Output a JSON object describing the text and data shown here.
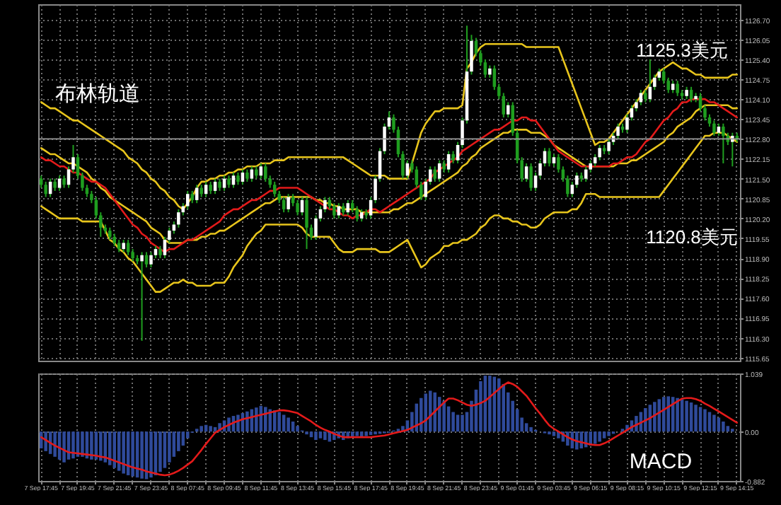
{
  "chart_data": [
    {
      "type": "candlestick",
      "categories": [
        null,
        null,
        null,
        null,
        null,
        null,
        null,
        null,
        null,
        null,
        null,
        null,
        null,
        null,
        null,
        null,
        null,
        null,
        null,
        null,
        null,
        null,
        null,
        null,
        null,
        null,
        null,
        null,
        null,
        null,
        null,
        null,
        null,
        null,
        null,
        null,
        null,
        null,
        null,
        null,
        null,
        null,
        null,
        null,
        null,
        null,
        null,
        null,
        null,
        null,
        null,
        null,
        null,
        null,
        null,
        null,
        null,
        null,
        null,
        null,
        null,
        null,
        null,
        null,
        null,
        null,
        null,
        null,
        null,
        null,
        null,
        null,
        null,
        null,
        null,
        null,
        null,
        null,
        null,
        null,
        null,
        null,
        null,
        null,
        null,
        null,
        null,
        null,
        null,
        null,
        null,
        null,
        null,
        null,
        null,
        null,
        null,
        null,
        null,
        null,
        null,
        null,
        null,
        null,
        null,
        null,
        null,
        null,
        null,
        null,
        null,
        null,
        null,
        null,
        null,
        null,
        null,
        null,
        null,
        null,
        null,
        null,
        null,
        null,
        null,
        null,
        null,
        null,
        null,
        null,
        null,
        null,
        null,
        null,
        null,
        null,
        null,
        null,
        null,
        null,
        null,
        null,
        null,
        null,
        null,
        null,
        null,
        null,
        null,
        null,
        null,
        null,
        null
      ],
      "ohlc": [
        [
          1121.5,
          1121.6,
          1121.2,
          1121.3
        ],
        [
          1121.3,
          1121.4,
          1120.9,
          1121.0
        ],
        [
          1121.0,
          1121.5,
          1120.9,
          1121.4
        ],
        [
          1121.4,
          1121.5,
          1121.1,
          1121.2
        ],
        [
          1121.2,
          1121.6,
          1121.1,
          1121.5
        ],
        [
          1121.5,
          1121.6,
          1121.2,
          1121.3
        ],
        [
          1121.3,
          1121.9,
          1121.2,
          1121.8
        ],
        [
          1121.8,
          1122.6,
          1121.7,
          1122.2
        ],
        [
          1122.2,
          1122.3,
          1121.5,
          1121.6
        ],
        [
          1121.6,
          1121.7,
          1121.1,
          1121.2
        ],
        [
          1121.2,
          1121.3,
          1120.9,
          1121.0
        ],
        [
          1121.0,
          1121.1,
          1120.7,
          1120.8
        ],
        [
          1120.8,
          1120.9,
          1120.2,
          1120.3
        ],
        [
          1120.3,
          1120.4,
          1119.6,
          1119.9
        ],
        [
          1119.9,
          1120.0,
          1119.7,
          1119.8
        ],
        [
          1119.8,
          1119.9,
          1119.5,
          1119.6
        ],
        [
          1119.6,
          1119.7,
          1119.3,
          1119.4
        ],
        [
          1119.4,
          1119.5,
          1119.1,
          1119.2
        ],
        [
          1119.2,
          1119.5,
          1119.1,
          1119.4
        ],
        [
          1119.4,
          1119.5,
          1119.0,
          1119.1
        ],
        [
          1119.1,
          1119.2,
          1118.8,
          1118.9
        ],
        [
          1118.9,
          1119.0,
          1118.7,
          1118.8
        ],
        [
          1118.8,
          1119.1,
          1116.2,
          1119.0
        ],
        [
          1119.0,
          1119.1,
          1118.6,
          1118.7
        ],
        [
          1118.7,
          1119.1,
          1118.6,
          1119.0
        ],
        [
          1119.0,
          1119.3,
          1118.9,
          1119.2
        ],
        [
          1119.2,
          1119.3,
          1118.9,
          1119.0
        ],
        [
          1119.0,
          1119.6,
          1118.9,
          1119.5
        ],
        [
          1119.5,
          1119.9,
          1119.4,
          1119.8
        ],
        [
          1119.8,
          1120.1,
          1119.7,
          1120.0
        ],
        [
          1120.0,
          1120.5,
          1119.9,
          1120.4
        ],
        [
          1120.4,
          1120.7,
          1120.3,
          1120.6
        ],
        [
          1120.6,
          1121.1,
          1120.5,
          1121.0
        ],
        [
          1121.0,
          1121.1,
          1120.7,
          1120.8
        ],
        [
          1120.8,
          1121.3,
          1120.7,
          1121.2
        ],
        [
          1121.2,
          1121.3,
          1120.9,
          1121.0
        ],
        [
          1121.0,
          1121.4,
          1120.9,
          1121.3
        ],
        [
          1121.3,
          1121.4,
          1121.0,
          1121.1
        ],
        [
          1121.1,
          1121.5,
          1121.0,
          1121.4
        ],
        [
          1121.4,
          1121.5,
          1121.1,
          1121.2
        ],
        [
          1121.2,
          1121.6,
          1121.1,
          1121.5
        ],
        [
          1121.5,
          1121.6,
          1121.2,
          1121.3
        ],
        [
          1121.3,
          1121.7,
          1121.2,
          1121.6
        ],
        [
          1121.6,
          1121.7,
          1121.3,
          1121.4
        ],
        [
          1121.4,
          1121.8,
          1121.3,
          1121.7
        ],
        [
          1121.7,
          1121.8,
          1121.4,
          1121.5
        ],
        [
          1121.5,
          1121.9,
          1121.4,
          1121.8
        ],
        [
          1121.8,
          1121.9,
          1121.5,
          1121.6
        ],
        [
          1121.6,
          1122.0,
          1121.5,
          1121.9
        ],
        [
          1121.9,
          1122.0,
          1121.4,
          1121.5
        ],
        [
          1121.5,
          1121.6,
          1121.2,
          1121.3
        ],
        [
          1121.3,
          1121.4,
          1120.9,
          1121.0
        ],
        [
          1121.0,
          1121.1,
          1120.7,
          1120.8
        ],
        [
          1120.8,
          1120.9,
          1120.4,
          1120.5
        ],
        [
          1120.5,
          1121.0,
          1120.4,
          1120.9
        ],
        [
          1120.9,
          1121.0,
          1120.6,
          1120.7
        ],
        [
          1120.7,
          1120.8,
          1120.3,
          1120.4
        ],
        [
          1120.4,
          1120.9,
          1120.3,
          1120.8
        ],
        [
          1120.8,
          1120.9,
          1119.2,
          1119.9
        ],
        [
          1119.9,
          1120.0,
          1119.5,
          1119.6
        ],
        [
          1119.6,
          1120.3,
          1119.5,
          1120.2
        ],
        [
          1120.2,
          1120.6,
          1120.1,
          1120.5
        ],
        [
          1120.5,
          1120.9,
          1120.4,
          1120.8
        ],
        [
          1120.8,
          1120.9,
          1120.5,
          1120.6
        ],
        [
          1120.6,
          1120.7,
          1120.2,
          1120.3
        ],
        [
          1120.3,
          1120.7,
          1120.2,
          1120.6
        ],
        [
          1120.6,
          1120.7,
          1120.3,
          1120.4
        ],
        [
          1120.4,
          1120.8,
          1120.3,
          1120.7
        ],
        [
          1120.7,
          1120.8,
          1120.4,
          1120.5
        ],
        [
          1120.5,
          1120.6,
          1120.1,
          1120.2
        ],
        [
          1120.2,
          1120.5,
          1120.1,
          1120.4
        ],
        [
          1120.4,
          1120.5,
          1120.2,
          1120.3
        ],
        [
          1120.3,
          1120.9,
          1120.2,
          1120.8
        ],
        [
          1120.8,
          1121.6,
          1120.7,
          1121.5
        ],
        [
          1121.5,
          1122.5,
          1121.4,
          1122.4
        ],
        [
          1122.4,
          1123.3,
          1122.3,
          1123.2
        ],
        [
          1123.2,
          1123.7,
          1123.1,
          1123.5
        ],
        [
          1123.5,
          1123.6,
          1123.0,
          1123.1
        ],
        [
          1123.1,
          1123.2,
          1122.2,
          1122.3
        ],
        [
          1122.3,
          1122.4,
          1121.5,
          1121.6
        ],
        [
          1121.6,
          1122.1,
          1121.5,
          1122.0
        ],
        [
          1122.0,
          1122.1,
          1121.7,
          1121.8
        ],
        [
          1121.8,
          1121.9,
          1121.2,
          1121.3
        ],
        [
          1121.3,
          1121.4,
          1120.8,
          1120.9
        ],
        [
          1120.9,
          1121.5,
          1120.8,
          1121.4
        ],
        [
          1121.4,
          1121.9,
          1121.3,
          1121.8
        ],
        [
          1121.8,
          1121.9,
          1121.4,
          1121.5
        ],
        [
          1121.5,
          1122.1,
          1121.4,
          1122.0
        ],
        [
          1122.0,
          1122.1,
          1121.7,
          1121.8
        ],
        [
          1121.8,
          1122.4,
          1121.7,
          1122.3
        ],
        [
          1122.3,
          1122.4,
          1122.0,
          1122.1
        ],
        [
          1122.1,
          1122.7,
          1122.0,
          1122.6
        ],
        [
          1122.6,
          1123.5,
          1122.5,
          1123.4
        ],
        [
          1123.4,
          1126.5,
          1123.3,
          1125.0
        ],
        [
          1125.0,
          1126.2,
          1124.9,
          1126.0
        ],
        [
          1126.0,
          1126.1,
          1125.5,
          1125.6
        ],
        [
          1125.6,
          1125.7,
          1125.2,
          1125.3
        ],
        [
          1125.3,
          1125.4,
          1124.8,
          1124.9
        ],
        [
          1124.9,
          1125.2,
          1124.8,
          1125.1
        ],
        [
          1125.1,
          1125.2,
          1124.4,
          1124.5
        ],
        [
          1124.5,
          1124.6,
          1124.1,
          1124.2
        ],
        [
          1124.2,
          1124.3,
          1123.5,
          1123.6
        ],
        [
          1123.6,
          1124.0,
          1123.5,
          1123.9
        ],
        [
          1123.9,
          1124.0,
          1122.9,
          1123.0
        ],
        [
          1123.0,
          1123.1,
          1122.0,
          1122.1
        ],
        [
          1122.1,
          1122.2,
          1121.4,
          1121.5
        ],
        [
          1121.5,
          1122.0,
          1121.4,
          1121.9
        ],
        [
          1121.9,
          1122.0,
          1121.1,
          1121.2
        ],
        [
          1121.2,
          1121.7,
          1121.1,
          1121.6
        ],
        [
          1121.6,
          1122.1,
          1121.5,
          1122.0
        ],
        [
          1122.0,
          1122.5,
          1121.9,
          1122.4
        ],
        [
          1122.4,
          1122.5,
          1121.9,
          1122.0
        ],
        [
          1122.0,
          1122.3,
          1121.9,
          1122.2
        ],
        [
          1122.2,
          1122.3,
          1121.7,
          1121.8
        ],
        [
          1121.8,
          1121.9,
          1121.4,
          1121.5
        ],
        [
          1121.5,
          1121.6,
          1120.9,
          1121.0
        ],
        [
          1121.0,
          1121.4,
          1120.9,
          1121.3
        ],
        [
          1121.3,
          1121.7,
          1121.2,
          1121.6
        ],
        [
          1121.6,
          1121.7,
          1121.4,
          1121.5
        ],
        [
          1121.5,
          1121.9,
          1121.4,
          1121.8
        ],
        [
          1121.8,
          1122.1,
          1121.7,
          1122.0
        ],
        [
          1122.0,
          1122.3,
          1121.9,
          1122.2
        ],
        [
          1122.2,
          1122.6,
          1122.1,
          1122.5
        ],
        [
          1122.5,
          1122.6,
          1122.3,
          1122.4
        ],
        [
          1122.4,
          1122.8,
          1122.3,
          1122.7
        ],
        [
          1122.7,
          1123.0,
          1122.6,
          1122.9
        ],
        [
          1122.9,
          1123.3,
          1122.8,
          1123.2
        ],
        [
          1123.2,
          1123.3,
          1123.0,
          1123.1
        ],
        [
          1123.1,
          1123.6,
          1123.0,
          1123.5
        ],
        [
          1123.5,
          1123.9,
          1123.4,
          1123.8
        ],
        [
          1123.8,
          1124.1,
          1123.7,
          1124.0
        ],
        [
          1124.0,
          1124.4,
          1123.9,
          1124.3
        ],
        [
          1124.3,
          1124.4,
          1124.0,
          1124.1
        ],
        [
          1124.1,
          1125.4,
          1124.0,
          1124.5
        ],
        [
          1124.5,
          1124.9,
          1124.4,
          1124.8
        ],
        [
          1124.8,
          1125.1,
          1124.7,
          1125.0
        ],
        [
          1125.0,
          1125.1,
          1124.6,
          1124.7
        ],
        [
          1124.7,
          1124.8,
          1124.3,
          1124.4
        ],
        [
          1124.4,
          1124.7,
          1124.3,
          1124.6
        ],
        [
          1124.6,
          1124.7,
          1124.2,
          1124.3
        ],
        [
          1124.3,
          1124.4,
          1124.1,
          1124.2
        ],
        [
          1124.2,
          1124.5,
          1124.1,
          1124.4
        ],
        [
          1124.4,
          1124.5,
          1124.0,
          1124.1
        ],
        [
          1124.1,
          1124.3,
          1124.0,
          1124.2
        ],
        [
          1124.2,
          1124.3,
          1123.7,
          1123.8
        ],
        [
          1123.8,
          1123.9,
          1123.4,
          1123.5
        ],
        [
          1123.5,
          1123.6,
          1123.2,
          1123.3
        ],
        [
          1123.3,
          1123.4,
          1122.9,
          1123.0
        ],
        [
          1123.0,
          1123.3,
          1122.9,
          1123.2
        ],
        [
          1123.2,
          1123.3,
          1122.0,
          1122.9
        ],
        [
          1122.9,
          1123.0,
          1122.6,
          1122.7
        ],
        [
          1122.7,
          1123.0,
          1121.9,
          1122.9
        ],
        [
          1122.9,
          1123.0,
          1122.7,
          1122.8
        ]
      ],
      "series": [
        {
          "type": "line",
          "color": "#e8c51c",
          "values": [
            1124.0,
            1123.9,
            1123.8,
            1123.8,
            1123.7,
            1123.6,
            1123.5,
            1123.4,
            1123.4,
            1123.3,
            1123.2,
            1123.1,
            1123.0,
            1122.9,
            1122.8,
            1122.7,
            1122.6,
            1122.5,
            1122.4,
            1122.2,
            1122.1,
            1122.0,
            1121.8,
            1121.7,
            1121.5,
            1121.4,
            1121.2,
            1121.1,
            1120.9,
            1120.8,
            1120.6,
            1120.5,
            1120.7,
            1120.9,
            1121.2,
            1121.4,
            1121.4,
            1121.5,
            1121.5,
            1121.6,
            1121.6,
            1121.7,
            1121.7,
            1121.8,
            1121.8,
            1121.9,
            1121.9,
            1121.9,
            1122.0,
            1122.0,
            1122.0,
            1122.1,
            1122.1,
            1122.1,
            1122.2,
            1122.2,
            1122.2,
            1122.2,
            1122.2,
            1122.2,
            1122.2,
            1122.2,
            1122.2,
            1122.2,
            1122.2,
            1122.2,
            1122.2,
            1122.1,
            1122.0,
            1121.9,
            1121.8,
            1121.7,
            1121.6,
            1121.6,
            1121.6,
            1121.6,
            1121.5,
            1121.5,
            1121.5,
            1121.5,
            1121.5,
            1122.0,
            1122.5,
            1123.0,
            1123.3,
            1123.5,
            1123.7,
            1123.7,
            1123.8,
            1123.8,
            1123.8,
            1123.8,
            1123.9,
            1125.1,
            1125.3,
            1125.6,
            1125.8,
            1125.9,
            1125.9,
            1125.9,
            1125.9,
            1125.9,
            1125.9,
            1125.9,
            1125.9,
            1125.9,
            1125.8,
            1125.8,
            1125.8,
            1125.8,
            1125.8,
            1125.8,
            1125.8,
            1125.8,
            1125.4,
            1125.0,
            1124.6,
            1124.2,
            1123.8,
            1123.4,
            1123.0,
            1122.6,
            1122.7,
            1122.7,
            1122.8,
            1123.0,
            1123.2,
            1123.4,
            1123.6,
            1123.8,
            1124.0,
            1124.2,
            1124.4,
            1124.6,
            1124.8,
            1125.0,
            1125.1,
            1125.2,
            1125.3,
            1125.2,
            1125.1,
            1125.1,
            1125.0,
            1124.9,
            1124.9,
            1124.8,
            1124.8,
            1124.8,
            1124.8,
            1124.8,
            1124.8,
            1124.9,
            1124.9
          ]
        },
        {
          "type": "line",
          "color": "#e8c51c",
          "values": [
            1122.5,
            1122.4,
            1122.3,
            1122.3,
            1122.2,
            1122.1,
            1122.0,
            1122.0,
            1121.9,
            1121.8,
            1121.7,
            1121.5,
            1121.4,
            1121.2,
            1121.1,
            1120.9,
            1120.8,
            1120.7,
            1120.6,
            1120.5,
            1120.4,
            1120.3,
            1120.2,
            1120.1,
            1119.9,
            1119.8,
            1119.7,
            1119.5,
            1119.4,
            1119.4,
            1119.4,
            1119.4,
            1119.5,
            1119.5,
            1119.5,
            1119.6,
            1119.6,
            1119.7,
            1119.7,
            1119.8,
            1119.8,
            1119.9,
            1120.0,
            1120.1,
            1120.2,
            1120.3,
            1120.4,
            1120.5,
            1120.6,
            1120.7,
            1120.7,
            1120.8,
            1120.9,
            1120.9,
            1120.9,
            1120.9,
            1120.9,
            1120.9,
            1120.9,
            1120.9,
            1120.8,
            1120.8,
            1120.7,
            1120.7,
            1120.6,
            1120.6,
            1120.5,
            1120.5,
            1120.5,
            1120.5,
            1120.4,
            1120.4,
            1120.4,
            1120.4,
            1120.4,
            1120.4,
            1120.4,
            1120.5,
            1120.5,
            1120.6,
            1120.7,
            1120.7,
            1120.8,
            1120.9,
            1121.0,
            1121.1,
            1121.2,
            1121.3,
            1121.4,
            1121.5,
            1121.6,
            1121.7,
            1121.9,
            1122.0,
            1122.2,
            1122.3,
            1122.5,
            1122.6,
            1122.7,
            1122.8,
            1122.9,
            1123.0,
            1123.0,
            1123.1,
            1123.1,
            1123.1,
            1123.1,
            1123.0,
            1123.0,
            1123.0,
            1122.9,
            1122.8,
            1122.6,
            1122.5,
            1122.4,
            1122.3,
            1122.2,
            1122.1,
            1122.0,
            1121.9,
            1121.9,
            1121.9,
            1121.9,
            1121.9,
            1121.9,
            1121.9,
            1122.0,
            1122.0,
            1122.0,
            1122.1,
            1122.1,
            1122.2,
            1122.3,
            1122.4,
            1122.5,
            1122.6,
            1122.7,
            1122.9,
            1123.0,
            1123.2,
            1123.3,
            1123.4,
            1123.5,
            1123.7,
            1123.8,
            1123.9,
            1123.9,
            1123.9,
            1123.9,
            1123.9,
            1123.9,
            1123.8,
            1123.8
          ]
        },
        {
          "type": "line",
          "color": "#e8c51c",
          "values": [
            1120.6,
            1120.5,
            1120.4,
            1120.3,
            1120.2,
            1120.2,
            1120.2,
            1120.2,
            1120.2,
            1120.1,
            1120.1,
            1120.1,
            1120.1,
            1120.1,
            1119.8,
            1119.5,
            1119.4,
            1119.2,
            1119.1,
            1118.9,
            1118.8,
            1118.6,
            1118.4,
            1118.2,
            1118.0,
            1117.8,
            1117.8,
            1117.9,
            1118.0,
            1118.1,
            1118.1,
            1118.2,
            1118.1,
            1118.1,
            1118.0,
            1118.0,
            1118.0,
            1118.0,
            1118.1,
            1118.1,
            1118.1,
            1118.3,
            1118.6,
            1118.8,
            1119.0,
            1119.3,
            1119.5,
            1119.7,
            1119.8,
            1120.0,
            1120.0,
            1120.0,
            1120.0,
            1120.0,
            1120.0,
            1120.0,
            1120.0,
            1119.9,
            1119.7,
            1119.6,
            1119.6,
            1119.6,
            1119.6,
            1119.6,
            1119.4,
            1119.2,
            1119.1,
            1119.1,
            1119.1,
            1119.2,
            1119.2,
            1119.2,
            1119.2,
            1119.2,
            1119.1,
            1119.1,
            1119.1,
            1119.2,
            1119.3,
            1119.4,
            1119.5,
            1119.2,
            1118.9,
            1118.6,
            1118.7,
            1118.9,
            1119.0,
            1119.1,
            1119.3,
            1119.3,
            1119.4,
            1119.4,
            1119.5,
            1119.5,
            1119.6,
            1119.7,
            1119.9,
            1120.0,
            1120.2,
            1120.3,
            1120.3,
            1120.2,
            1120.2,
            1120.1,
            1120.1,
            1120.0,
            1120.0,
            1119.9,
            1119.9,
            1120.0,
            1120.2,
            1120.3,
            1120.4,
            1120.4,
            1120.4,
            1120.4,
            1120.5,
            1120.5,
            1120.7,
            1121.0,
            1121.0,
            1121.0,
            1120.9,
            1120.9,
            1120.9,
            1120.9,
            1120.9,
            1120.9,
            1120.9,
            1120.9,
            1120.9,
            1120.9,
            1120.9,
            1120.9,
            1120.9,
            1120.9,
            1121.1,
            1121.3,
            1121.5,
            1121.7,
            1121.9,
            1122.1,
            1122.3,
            1122.5,
            1122.7,
            1122.9,
            1122.9,
            1123.0,
            1123.0,
            1123.0,
            1122.9,
            1122.8,
            1122.7
          ]
        },
        {
          "type": "line",
          "color": "#e41a1a",
          "values": [
            1122.2,
            1122.1,
            1122.1,
            1122.0,
            1121.9,
            1121.9,
            1121.8,
            1121.7,
            1121.7,
            1121.6,
            1121.5,
            1121.4,
            1121.4,
            1121.3,
            1121.2,
            1121.0,
            1120.8,
            1120.6,
            1120.4,
            1120.2,
            1120.0,
            1119.9,
            1119.7,
            1119.6,
            1119.4,
            1119.3,
            1119.2,
            1119.1,
            1119.2,
            1119.2,
            1119.3,
            1119.4,
            1119.5,
            1119.5,
            1119.6,
            1119.7,
            1119.8,
            1119.9,
            1120.0,
            1120.1,
            1120.3,
            1120.4,
            1120.5,
            1120.5,
            1120.6,
            1120.7,
            1120.8,
            1120.8,
            1120.9,
            1121.0,
            1121.1,
            1121.1,
            1121.2,
            1121.2,
            1121.2,
            1121.2,
            1121.2,
            1121.1,
            1121.0,
            1120.9,
            1120.8,
            1120.7,
            1120.6,
            1120.5,
            1120.5,
            1120.4,
            1120.3,
            1120.3,
            1120.2,
            1120.3,
            1120.3,
            1120.4,
            1120.5,
            1120.5,
            1120.4,
            1120.5,
            1120.6,
            1120.7,
            1120.8,
            1120.9,
            1121.0,
            1121.1,
            1121.2,
            1121.3,
            1121.4,
            1121.5,
            1121.7,
            1121.8,
            1121.9,
            1122.0,
            1122.1,
            1122.2,
            1122.4,
            1122.5,
            1122.6,
            1122.7,
            1122.8,
            1122.9,
            1123.0,
            1123.1,
            1123.1,
            1123.2,
            1123.3,
            1123.4,
            1123.4,
            1123.5,
            1123.5,
            1123.4,
            1123.4,
            1123.2,
            1123.0,
            1122.8,
            1122.6,
            1122.4,
            1122.3,
            1122.2,
            1122.1,
            1122.0,
            1121.9,
            1121.9,
            1121.9,
            1121.9,
            1121.9,
            1121.9,
            1121.9,
            1122.0,
            1122.0,
            1122.1,
            1122.2,
            1122.2,
            1122.3,
            1122.5,
            1122.7,
            1122.8,
            1123.0,
            1123.2,
            1123.4,
            1123.5,
            1123.7,
            1123.8,
            1124.0,
            1124.0,
            1124.1,
            1124.1,
            1124.1,
            1124.1,
            1124.0,
            1124.0,
            1123.9,
            1123.8,
            1123.7,
            1123.6,
            1123.5
          ]
        }
      ],
      "ylim": [
        1115.55,
        1127.2
      ],
      "yticks": [
        {
          "value": 1126.7,
          "label": "1126.70"
        },
        {
          "value": 1126.05,
          "label": "1126.05"
        },
        {
          "value": 1125.4,
          "label": "1125.40"
        },
        {
          "value": 1124.75,
          "label": "1124.75"
        },
        {
          "value": 1124.1,
          "label": "1124.10"
        },
        {
          "value": 1123.45,
          "label": "1123.45"
        },
        {
          "value": 1122.8,
          "label": "1122.80"
        },
        {
          "value": 1122.15,
          "label": "1122.15"
        },
        {
          "value": 1121.5,
          "label": "1121.50"
        },
        {
          "value": 1120.85,
          "label": "1120.85"
        },
        {
          "value": 1120.2,
          "label": "1120.20"
        },
        {
          "value": 1119.55,
          "label": "1119.55"
        },
        {
          "value": 1118.9,
          "label": "1118.90"
        },
        {
          "value": 1118.25,
          "label": "1118.25"
        },
        {
          "value": 1117.6,
          "label": "1117.60"
        },
        {
          "value": 1116.95,
          "label": "1116.95"
        },
        {
          "value": 1116.3,
          "label": "1116.30"
        },
        {
          "value": 1115.65,
          "label": "1115.65"
        }
      ],
      "grid": true,
      "tick_labels": "y",
      "ref_lines": [
        {
          "axis": "y",
          "value": 1122.8,
          "color": "#9a9a9a"
        }
      ],
      "annotations": [
        "布林轨道",
        "1125.3美元",
        "1120.8美元"
      ]
    },
    {
      "type": "bar",
      "categories": [
        "7 Sep 17:45",
        null,
        null,
        null,
        null,
        null,
        null,
        null,
        "7 Sep 19:45",
        null,
        null,
        null,
        null,
        null,
        null,
        null,
        "7 Sep 21:45",
        null,
        null,
        null,
        null,
        null,
        null,
        null,
        "7 Sep 23:45",
        null,
        null,
        null,
        null,
        null,
        null,
        null,
        "8 Sep 07:45",
        null,
        null,
        null,
        null,
        null,
        null,
        null,
        "8 Sep 09:45",
        null,
        null,
        null,
        null,
        null,
        null,
        null,
        "8 Sep 11:45",
        null,
        null,
        null,
        null,
        null,
        null,
        null,
        "8 Sep 13:45",
        null,
        null,
        null,
        null,
        null,
        null,
        null,
        "8 Sep 15:45",
        null,
        null,
        null,
        null,
        null,
        null,
        null,
        "8 Sep 17:45",
        null,
        null,
        null,
        null,
        null,
        null,
        null,
        "8 Sep 19:45",
        null,
        null,
        null,
        null,
        null,
        null,
        null,
        "8 Sep 21:45",
        null,
        null,
        null,
        null,
        null,
        null,
        null,
        "8 Sep 23:45",
        null,
        null,
        null,
        null,
        null,
        null,
        null,
        "9 Sep 01:45",
        null,
        null,
        null,
        null,
        null,
        null,
        null,
        "9 Sep 03:45",
        null,
        null,
        null,
        null,
        null,
        null,
        null,
        "9 Sep 06:15",
        null,
        null,
        null,
        null,
        null,
        null,
        null,
        "9 Sep 08:15",
        null,
        null,
        null,
        null,
        null,
        null,
        null,
        "9 Sep 10:15",
        null,
        null,
        null,
        null,
        null,
        null,
        null,
        "9 Sep 12:15",
        null,
        null,
        null,
        null,
        null,
        null,
        null,
        "9 Sep 14:15"
      ],
      "series": [
        {
          "type": "bar",
          "color": "#2f4a9a",
          "values": [
            -0.3,
            -0.35,
            -0.4,
            -0.45,
            -0.5,
            -0.55,
            -0.5,
            -0.48,
            -0.45,
            -0.45,
            -0.48,
            -0.5,
            -0.5,
            -0.52,
            -0.55,
            -0.6,
            -0.65,
            -0.7,
            -0.75,
            -0.78,
            -0.8,
            -0.82,
            -0.84,
            -0.85,
            -0.82,
            -0.78,
            -0.72,
            -0.65,
            -0.55,
            -0.45,
            -0.35,
            -0.25,
            -0.12,
            -0.02,
            0.05,
            0.1,
            0.12,
            0.1,
            0.08,
            0.15,
            0.2,
            0.25,
            0.28,
            0.3,
            0.33,
            0.36,
            0.4,
            0.43,
            0.46,
            0.44,
            0.4,
            0.38,
            0.35,
            0.3,
            0.25,
            0.18,
            0.1,
            0.02,
            -0.05,
            -0.1,
            -0.15,
            -0.12,
            -0.15,
            -0.18,
            -0.15,
            -0.12,
            -0.15,
            -0.12,
            -0.1,
            -0.08,
            -0.1,
            -0.08,
            -0.06,
            -0.05,
            -0.04,
            -0.03,
            -0.02,
            0.02,
            0.05,
            0.1,
            0.2,
            0.35,
            0.5,
            0.6,
            0.68,
            0.73,
            0.7,
            0.62,
            0.55,
            0.45,
            0.35,
            0.3,
            0.3,
            0.35,
            0.55,
            0.75,
            0.9,
            1.0,
            1.0,
            0.98,
            0.95,
            0.85,
            0.7,
            0.55,
            0.4,
            0.25,
            0.15,
            0.08,
            0.03,
            0.0,
            -0.03,
            -0.05,
            -0.08,
            -0.12,
            -0.18,
            -0.25,
            -0.3,
            -0.32,
            -0.3,
            -0.28,
            -0.25,
            -0.22,
            -0.18,
            -0.12,
            -0.08,
            -0.04,
            0.0,
            0.05,
            0.12,
            0.2,
            0.28,
            0.35,
            0.42,
            0.48,
            0.53,
            0.58,
            0.62,
            0.63,
            0.62,
            0.6,
            0.58,
            0.55,
            0.52,
            0.48,
            0.44,
            0.4,
            0.35,
            0.3,
            0.25,
            0.18,
            0.1,
            0.05,
            0.0
          ]
        },
        {
          "type": "line",
          "color": "#e41a1a",
          "values": [
            -0.1,
            -0.15,
            -0.2,
            -0.25,
            -0.29,
            -0.33,
            -0.37,
            -0.38,
            -0.39,
            -0.4,
            -0.41,
            -0.42,
            -0.43,
            -0.45,
            -0.46,
            -0.49,
            -0.52,
            -0.55,
            -0.58,
            -0.61,
            -0.64,
            -0.66,
            -0.68,
            -0.71,
            -0.73,
            -0.75,
            -0.77,
            -0.78,
            -0.77,
            -0.74,
            -0.7,
            -0.65,
            -0.59,
            -0.53,
            -0.43,
            -0.33,
            -0.22,
            -0.12,
            -0.02,
            0.03,
            0.08,
            0.12,
            0.16,
            0.19,
            0.22,
            0.24,
            0.26,
            0.28,
            0.3,
            0.32,
            0.34,
            0.36,
            0.38,
            0.38,
            0.37,
            0.35,
            0.33,
            0.28,
            0.23,
            0.18,
            0.12,
            0.07,
            0.03,
            0.0,
            -0.04,
            -0.07,
            -0.1,
            -0.1,
            -0.1,
            -0.1,
            -0.1,
            -0.1,
            -0.1,
            -0.09,
            -0.08,
            -0.07,
            -0.05,
            -0.03,
            -0.01,
            0.01,
            0.03,
            0.07,
            0.11,
            0.15,
            0.2,
            0.28,
            0.36,
            0.44,
            0.52,
            0.59,
            0.59,
            0.56,
            0.52,
            0.48,
            0.46,
            0.48,
            0.51,
            0.55,
            0.62,
            0.69,
            0.76,
            0.83,
            0.88,
            0.85,
            0.8,
            0.72,
            0.64,
            0.53,
            0.42,
            0.32,
            0.21,
            0.11,
            0.05,
            0.0,
            -0.05,
            -0.1,
            -0.14,
            -0.17,
            -0.19,
            -0.21,
            -0.23,
            -0.24,
            -0.24,
            -0.21,
            -0.17,
            -0.12,
            -0.07,
            -0.02,
            0.03,
            0.08,
            0.12,
            0.16,
            0.2,
            0.24,
            0.29,
            0.34,
            0.39,
            0.44,
            0.49,
            0.54,
            0.59,
            0.6,
            0.6,
            0.58,
            0.55,
            0.5,
            0.46,
            0.41,
            0.36,
            0.31,
            0.26,
            0.21,
            0.16
          ]
        }
      ],
      "ylim": [
        -0.882,
        1.039
      ],
      "yticks": [
        1.039,
        {
          "value": 0,
          "label": "0.00"
        },
        -0.882
      ],
      "grid": true,
      "annotations": [
        "MACD"
      ]
    }
  ]
}
